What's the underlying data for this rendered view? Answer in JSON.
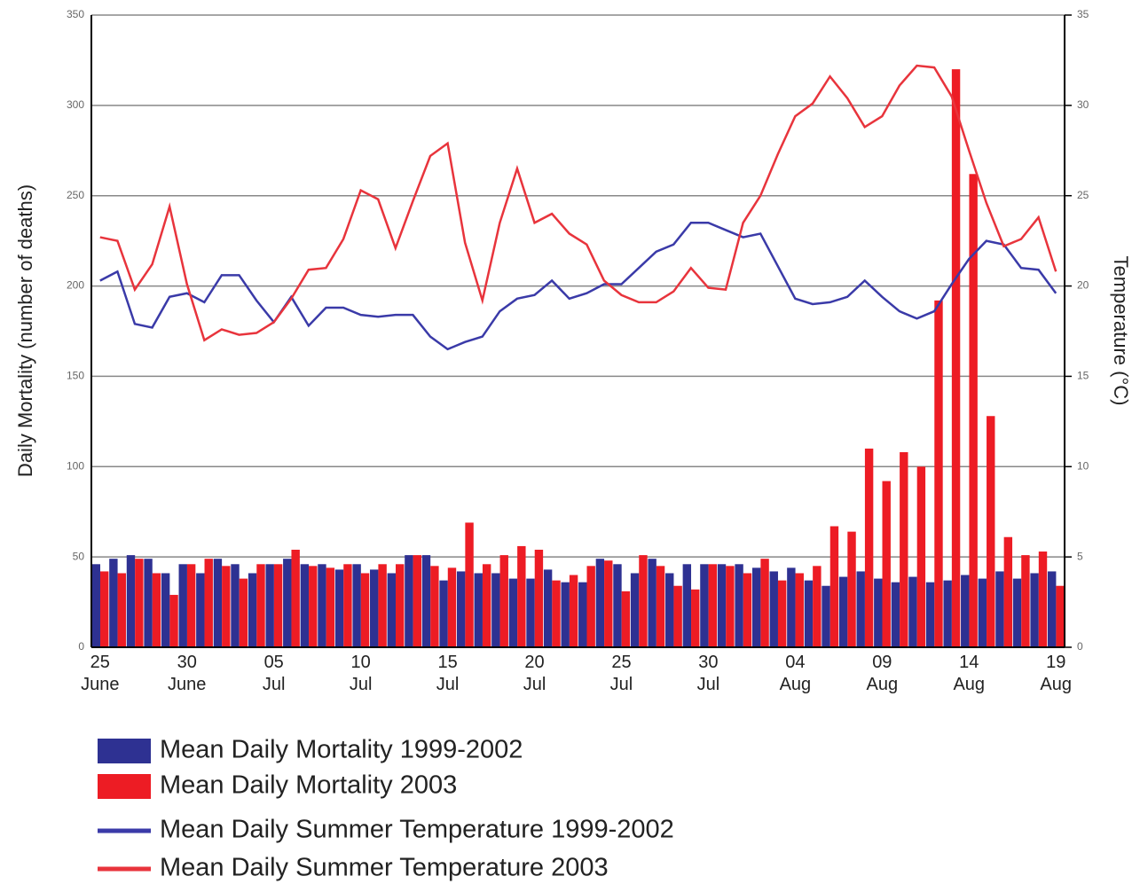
{
  "chart_data": {
    "type": "bar",
    "y_label": "Daily Mortality (number of deaths)",
    "y2_label": "Temperature (°C)",
    "categories": [
      "25 June",
      null,
      null,
      null,
      null,
      "30 June",
      null,
      null,
      null,
      null,
      "05 Jul",
      null,
      null,
      null,
      null,
      "10 Jul",
      null,
      null,
      null,
      null,
      "15 Jul",
      null,
      null,
      null,
      null,
      "20 Jul",
      null,
      null,
      null,
      null,
      "25 Jul",
      null,
      null,
      null,
      null,
      "30 Jul",
      null,
      null,
      null,
      null,
      "04 Aug",
      null,
      null,
      null,
      null,
      "09 Aug",
      null,
      null,
      null,
      null,
      "14 Aug",
      null,
      null,
      null,
      null,
      "19 Aug"
    ],
    "ylim": [
      0,
      350
    ],
    "yticks": [
      0,
      50,
      100,
      150,
      200,
      250,
      300,
      350
    ],
    "y2lim": [
      0,
      35
    ],
    "y2ticks": [
      0,
      5,
      10,
      15,
      20,
      25,
      30,
      35
    ],
    "grid": true,
    "series": [
      {
        "name": "Mean Daily Mortality 1999-2002",
        "type": "bar",
        "color": "#2e3192",
        "values": [
          46,
          49,
          51,
          49,
          41,
          46,
          41,
          49,
          46,
          41,
          46,
          49,
          46,
          46,
          43,
          46,
          43,
          41,
          51,
          51,
          37,
          42,
          41,
          41,
          38,
          38,
          43,
          36,
          36,
          49,
          46,
          41,
          49,
          41,
          46,
          46,
          46,
          46,
          44,
          42,
          44,
          37,
          34,
          39,
          42,
          38,
          36,
          39,
          36,
          37,
          40,
          38,
          42,
          38,
          41,
          42
        ]
      },
      {
        "name": "Mean Daily Mortality 2003",
        "type": "bar",
        "color": "#ed1c24",
        "values": [
          42,
          41,
          49,
          41,
          29,
          46,
          49,
          45,
          38,
          46,
          46,
          54,
          45,
          44,
          46,
          41,
          46,
          46,
          51,
          45,
          44,
          69,
          46,
          51,
          56,
          54,
          37,
          40,
          45,
          48,
          31,
          51,
          45,
          34,
          32,
          46,
          45,
          41,
          49,
          37,
          41,
          45,
          67,
          64,
          110,
          92,
          108,
          100,
          192,
          320,
          262,
          128,
          61,
          51,
          53,
          34
        ]
      },
      {
        "name": "Mean Daily Summer Temperature 1999-2002",
        "type": "line",
        "axis": "y2",
        "color": "#3a3aa8",
        "values": [
          20.3,
          20.8,
          17.9,
          17.7,
          19.4,
          19.6,
          19.1,
          20.6,
          20.6,
          19.2,
          18.0,
          19.4,
          17.8,
          18.8,
          18.8,
          18.4,
          18.3,
          18.4,
          18.4,
          17.2,
          16.5,
          16.9,
          17.2,
          18.6,
          19.3,
          19.5,
          20.3,
          19.3,
          19.6,
          20.1,
          20.1,
          21.0,
          21.9,
          22.3,
          23.5,
          23.5,
          23.1,
          22.7,
          22.9,
          21.1,
          19.3,
          19.0,
          19.1,
          19.4,
          20.3,
          19.4,
          18.6,
          18.2,
          18.6,
          20.1,
          21.5,
          22.5,
          22.3,
          21.0,
          20.9,
          19.6
        ]
      },
      {
        "name": "Mean Daily Summer Temperature 2003",
        "type": "line",
        "axis": "y2",
        "color": "#e8343c",
        "values": [
          22.7,
          22.5,
          19.8,
          21.2,
          24.4,
          20.1,
          17.0,
          17.6,
          17.3,
          17.4,
          18.0,
          19.3,
          20.9,
          21.0,
          22.6,
          25.3,
          24.8,
          22.1,
          24.7,
          27.2,
          27.9,
          22.4,
          19.2,
          23.5,
          26.5,
          23.5,
          24.0,
          22.9,
          22.3,
          20.3,
          19.5,
          19.1,
          19.1,
          19.7,
          21.0,
          19.9,
          19.8,
          23.5,
          25.0,
          27.3,
          29.4,
          30.1,
          31.6,
          30.4,
          28.8,
          29.4,
          31.1,
          32.2,
          32.1,
          30.5,
          27.5,
          24.6,
          22.2,
          22.6,
          23.8,
          20.8
        ]
      }
    ]
  }
}
